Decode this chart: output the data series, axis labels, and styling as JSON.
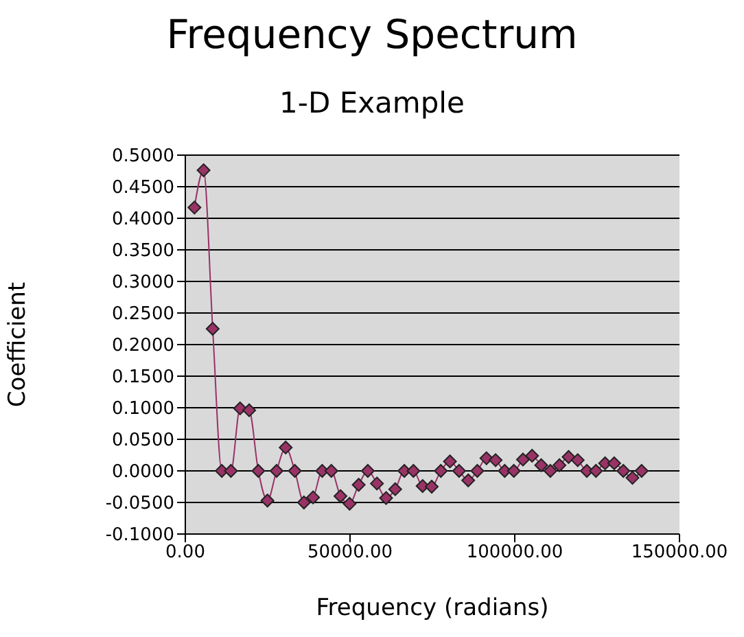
{
  "chart_data": {
    "type": "line",
    "title": "Frequency Spectrum",
    "subtitle": "1-D Example",
    "xlabel": "Frequency (radians)",
    "ylabel": "Coefficient",
    "x": [
      2770,
      5540,
      8310,
      11080,
      13850,
      16620,
      19390,
      22160,
      24930,
      27700,
      30470,
      33240,
      36010,
      38780,
      41550,
      44320,
      47090,
      49860,
      52630,
      55400,
      58170,
      60940,
      63710,
      66480,
      69250,
      72020,
      74790,
      77560,
      80330,
      83100,
      85870,
      88640,
      91410,
      94180,
      96950,
      99720,
      102490,
      105260,
      108030,
      110800,
      113570,
      116340,
      119110,
      121880,
      124650,
      127420,
      130190,
      132960,
      135730,
      138500
    ],
    "series": [
      {
        "color": "#993366",
        "values": [
          0.417,
          0.476,
          0.225,
          0,
          0,
          0.099,
          0.096,
          0,
          -0.047,
          0,
          0.037,
          0,
          -0.05,
          -0.042,
          0,
          0,
          -0.04,
          -0.052,
          -0.022,
          0,
          -0.02,
          -0.043,
          -0.029,
          0,
          0,
          -0.024,
          -0.025,
          0,
          0.015,
          0,
          -0.015,
          0,
          0.02,
          0.017,
          0,
          0,
          0.018,
          0.024,
          0.009,
          0,
          0.009,
          0.022,
          0.017,
          0,
          0,
          0.012,
          0.012,
          0,
          -0.011,
          0
        ]
      }
    ],
    "xlim": [
      0,
      150000
    ],
    "xticks": [
      {
        "value": 0,
        "label": "0.00"
      },
      {
        "value": 50000,
        "label": "50000.00"
      },
      {
        "value": 100000,
        "label": "100000.00"
      },
      {
        "value": 150000,
        "label": "150000.00"
      }
    ],
    "ylim": [
      -0.1,
      0.5
    ],
    "yticks": [
      {
        "value": -0.1,
        "label": "-0.1000"
      },
      {
        "value": -0.05,
        "label": "-0.0500"
      },
      {
        "value": 0,
        "label": "0.0000"
      },
      {
        "value": 0.05,
        "label": "0.0500"
      },
      {
        "value": 0.1,
        "label": "0.1000"
      },
      {
        "value": 0.15,
        "label": "0.1500"
      },
      {
        "value": 0.2,
        "label": "0.2000"
      },
      {
        "value": 0.25,
        "label": "0.2500"
      },
      {
        "value": 0.3,
        "label": "0.3000"
      },
      {
        "value": 0.35,
        "label": "0.3500"
      },
      {
        "value": 0.4,
        "label": "0.4000"
      },
      {
        "value": 0.45,
        "label": "0.4500"
      },
      {
        "value": 0.5,
        "label": "0.5000"
      }
    ],
    "grid": "y",
    "marker": "diamond",
    "line_style": "solid"
  }
}
